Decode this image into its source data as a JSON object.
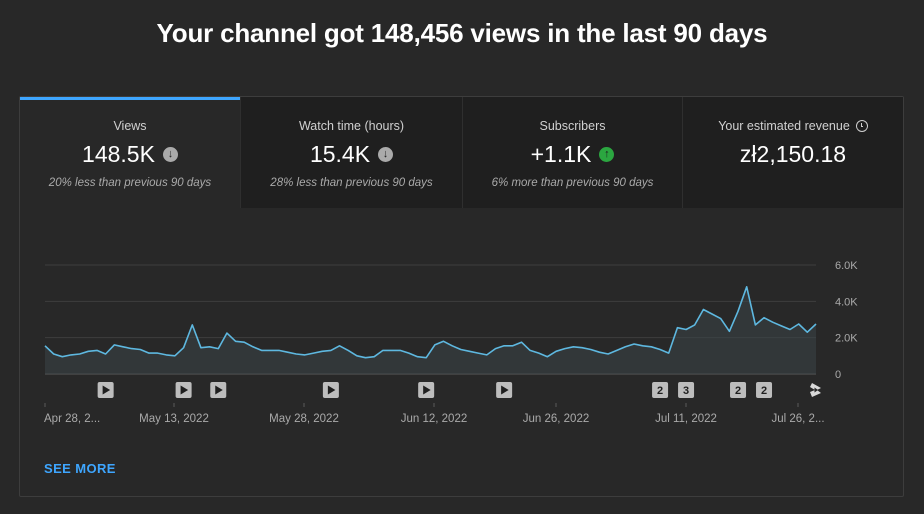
{
  "headline": "Your channel got 148,456 views in the last 90 days",
  "tabs": [
    {
      "label": "Views",
      "value": "148.5K",
      "trend": "down",
      "note": "20% less than previous 90 days"
    },
    {
      "label": "Watch time (hours)",
      "value": "15.4K",
      "trend": "down",
      "note": "28% less than previous 90 days"
    },
    {
      "label": "Subscribers",
      "value": "+1.1K",
      "trend": "up",
      "note": "6% more than previous 90 days"
    },
    {
      "label": "Your estimated revenue",
      "value": "zł2,150.18",
      "icon": "clock-icon"
    }
  ],
  "see_more": "SEE MORE",
  "colors": {
    "accent": "#3ea6ff",
    "line": "#5eb8e0",
    "up": "#2ba640",
    "down": "#aaaaaa"
  },
  "chart_data": {
    "type": "area",
    "x_tick_labels": [
      "Apr 28, 2...",
      "May 13, 2022",
      "May 28, 2022",
      "Jun 12, 2022",
      "Jun 26, 2022",
      "Jul 11, 2022",
      "Jul 26, 2..."
    ],
    "y_tick_labels": [
      "6.0K",
      "4.0K",
      "2.0K",
      "0"
    ],
    "ylim": [
      0,
      6000
    ],
    "grid": true,
    "values": [
      1550,
      1100,
      950,
      1050,
      1100,
      1250,
      1300,
      1100,
      1600,
      1500,
      1400,
      1350,
      1150,
      1150,
      1050,
      1000,
      1450,
      2700,
      1450,
      1500,
      1400,
      2250,
      1800,
      1750,
      1500,
      1300,
      1300,
      1300,
      1200,
      1100,
      1050,
      1150,
      1250,
      1300,
      1550,
      1300,
      1000,
      900,
      950,
      1300,
      1300,
      1300,
      1150,
      950,
      900,
      1600,
      1800,
      1550,
      1350,
      1250,
      1150,
      1050,
      1400,
      1550,
      1550,
      1750,
      1300,
      1150,
      950,
      1250,
      1400,
      1500,
      1450,
      1350,
      1200,
      1100,
      1300,
      1500,
      1650,
      1550,
      1500,
      1350,
      1150,
      2550,
      2450,
      2700,
      3550,
      3300,
      3050,
      2350,
      3450,
      4800,
      2700,
      3100,
      2850,
      2650,
      2450,
      2750,
      2300,
      2750
    ],
    "markers": [
      {
        "index": 7,
        "type": "video"
      },
      {
        "index": 16,
        "type": "video"
      },
      {
        "index": 20,
        "type": "video"
      },
      {
        "index": 33,
        "type": "video"
      },
      {
        "index": 44,
        "type": "video"
      },
      {
        "index": 53,
        "type": "video"
      },
      {
        "index": 71,
        "type": "count",
        "count": "2"
      },
      {
        "index": 74,
        "type": "count",
        "count": "3"
      },
      {
        "index": 80,
        "type": "count",
        "count": "2"
      },
      {
        "index": 83,
        "type": "count",
        "count": "2"
      },
      {
        "index": 89,
        "type": "shorts"
      }
    ]
  }
}
